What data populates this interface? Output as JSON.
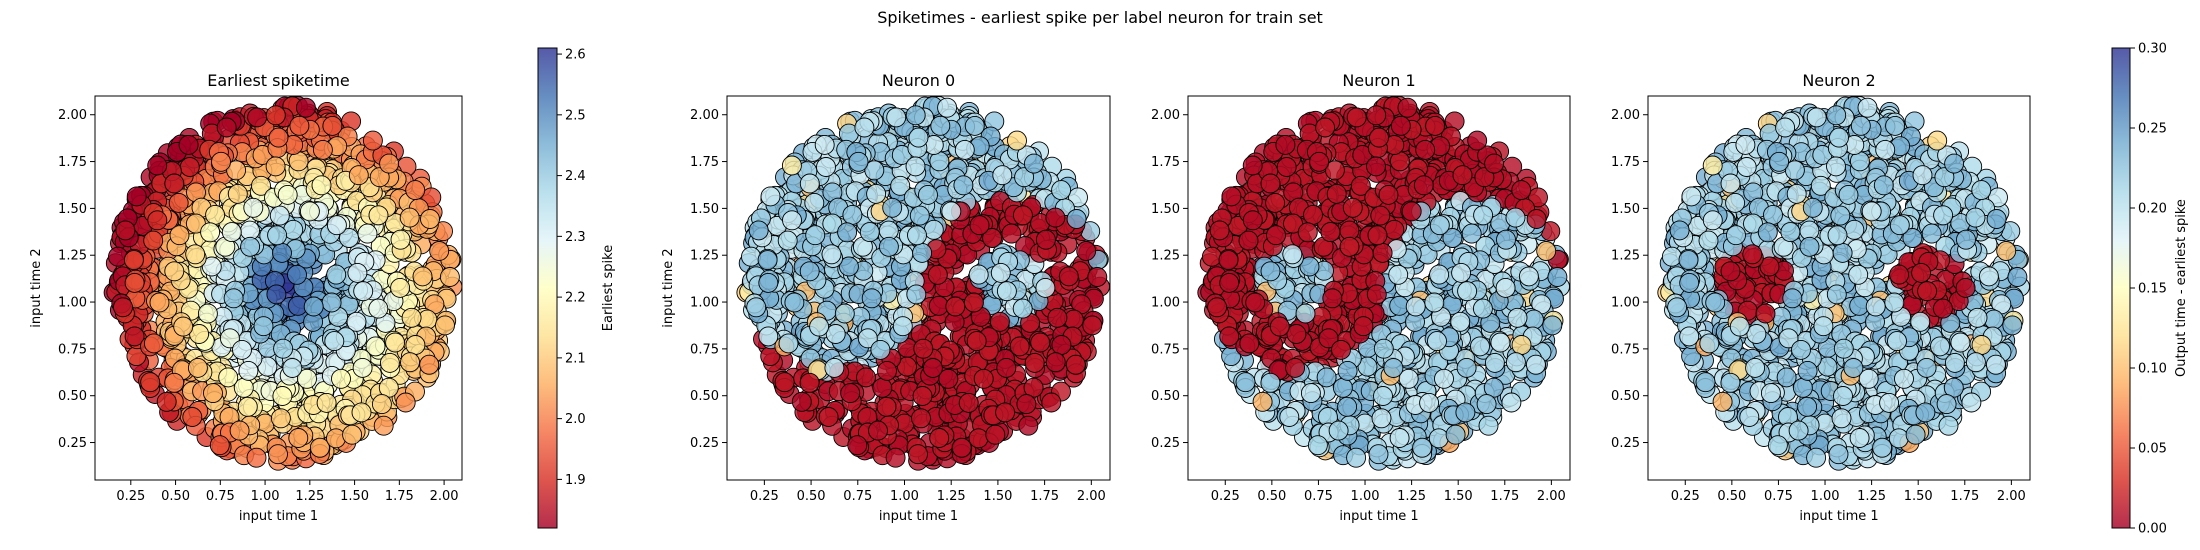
{
  "figure": {
    "suptitle": "Spiketimes - earliest spike per label neuron for train set"
  },
  "colors": {
    "colormap_RdYlBu": [
      "#a50026",
      "#d73027",
      "#f46d43",
      "#fdae61",
      "#fee090",
      "#ffffbf",
      "#e0f3f8",
      "#abd9e9",
      "#74add1",
      "#4575b4",
      "#313695"
    ],
    "marker_edge": "#000000",
    "background": "#ffffff"
  },
  "chart_data": [
    {
      "type": "scatter",
      "title": "Earliest spiketime",
      "xlabel": "input time 1",
      "ylabel": "input time 2",
      "xlim": [
        0.05,
        2.1
      ],
      "ylim": [
        0.05,
        2.1
      ],
      "xticks": [
        "0.25",
        "0.50",
        "0.75",
        "1.00",
        "1.25",
        "1.50",
        "1.75",
        "2.00"
      ],
      "yticks": [
        "0.25",
        "0.50",
        "0.75",
        "1.00",
        "1.25",
        "1.50",
        "1.75",
        "2.00"
      ],
      "points": "disk of input points centered (1.1, 1.1), radius 0.95; colored by earliest spike time",
      "color_by": "earliest_spike",
      "pattern": "time_gradient",
      "colorbar": {
        "label": "Earliest spike",
        "range": [
          1.82,
          2.61
        ],
        "ticks": [
          "1.9",
          "2.0",
          "2.1",
          "2.2",
          "2.3",
          "2.4",
          "2.5",
          "2.6"
        ],
        "tick_values": [
          1.9,
          2.0,
          2.1,
          2.2,
          2.3,
          2.4,
          2.5,
          2.6
        ]
      }
    },
    {
      "type": "scatter",
      "title": "Neuron 0",
      "xlabel": "input time 1",
      "ylabel": "input time 2",
      "xlim": [
        0.05,
        2.1
      ],
      "ylim": [
        0.05,
        2.1
      ],
      "xticks": [
        "0.25",
        "0.50",
        "0.75",
        "1.00",
        "1.25",
        "1.50",
        "1.75",
        "2.00"
      ],
      "yticks": [
        "0.25",
        "0.50",
        "0.75",
        "1.00",
        "1.25",
        "1.50",
        "1.75",
        "2.00"
      ],
      "color_by": "output_time_minus_earliest",
      "pattern": "yin_yang_neuron_0"
    },
    {
      "type": "scatter",
      "title": "Neuron 1",
      "xlabel": "input time 1",
      "ylabel": "",
      "xlim": [
        0.05,
        2.1
      ],
      "ylim": [
        0.05,
        2.1
      ],
      "xticks": [
        "0.25",
        "0.50",
        "0.75",
        "1.00",
        "1.25",
        "1.50",
        "1.75",
        "2.00"
      ],
      "yticks": [
        "0.25",
        "0.50",
        "0.75",
        "1.00",
        "1.25",
        "1.50",
        "1.75",
        "2.00"
      ],
      "color_by": "output_time_minus_earliest",
      "pattern": "yin_yang_neuron_1"
    },
    {
      "type": "scatter",
      "title": "Neuron 2",
      "xlabel": "",
      "ylabel": "",
      "xlim": [
        0.05,
        2.1
      ],
      "ylim": [
        0.05,
        2.1
      ],
      "xticks": [
        "0.25",
        "0.50",
        "0.75",
        "1.00",
        "1.25",
        "1.50",
        "1.75",
        "2.00"
      ],
      "yticks": [
        "0.25",
        "0.50",
        "0.75",
        "1.00",
        "1.25",
        "1.50",
        "1.75",
        "2.00"
      ],
      "color_by": "output_time_minus_earliest",
      "pattern": "yin_yang_neuron_2",
      "colorbar": {
        "label": "Output time - earliest spike",
        "range": [
          0.0,
          0.3
        ],
        "ticks": [
          "0.00",
          "0.05",
          "0.10",
          "0.15",
          "0.20",
          "0.25",
          "0.30"
        ],
        "tick_values": [
          0.0,
          0.05,
          0.1,
          0.15,
          0.2,
          0.25,
          0.3
        ]
      }
    }
  ]
}
